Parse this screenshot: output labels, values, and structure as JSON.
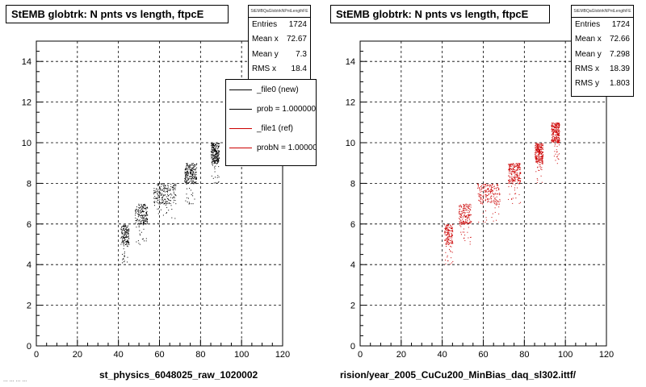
{
  "panels": [
    {
      "title": "StEMB globtrk: N pnts vs length, ftpcE",
      "xlabel": "st_physics_6048025_raw_1020002",
      "stats": {
        "header": "StEMBQaGlobtrkNPntLengthFE",
        "rows": [
          {
            "label": "Entries",
            "value": "1724"
          },
          {
            "label": "Mean x",
            "value": "72.67"
          },
          {
            "label": "Mean y",
            "value": "7.3"
          },
          {
            "label": "RMS x",
            "value": "18.4"
          }
        ]
      },
      "legend": [
        {
          "label": "_file0 (new)",
          "color": "#000000"
        },
        {
          "label": "prob = 1.000000",
          "color": "#000000"
        },
        {
          "label": "_file1 (ref)",
          "color": "#cc0000"
        },
        {
          "label": "probN = 1.000000",
          "color": "#cc0000"
        }
      ],
      "marker_color": "#000000"
    },
    {
      "title": "StEMB globtrk: N pnts vs length, ftpcE",
      "xlabel": "rision/year_2005_CuCu200_MinBias_daq_sl302.ittf/",
      "stats": {
        "header": "StEMBQaGlobtrkNPntLengthFE",
        "rows": [
          {
            "label": "Entries",
            "value": "1724"
          },
          {
            "label": "Mean x",
            "value": "72.66"
          },
          {
            "label": "Mean y",
            "value": "7.298"
          },
          {
            "label": "RMS x",
            "value": "18.39"
          },
          {
            "label": "RMS y",
            "value": "1.803"
          }
        ]
      },
      "marker_color": "#cc0000"
    }
  ],
  "footer": "... ... ... ...",
  "chart_data": [
    {
      "type": "scatter",
      "title": "StEMB globtrk: N pnts vs length, ftpcE",
      "xlim": [
        0,
        120
      ],
      "ylim": [
        0,
        15
      ],
      "x_ticks": [
        0,
        20,
        40,
        60,
        80,
        100,
        120
      ],
      "y_ticks": [
        0,
        2,
        4,
        6,
        8,
        10,
        12,
        14
      ],
      "grid": true,
      "clusters": [
        {
          "y": 5,
          "x_range": [
            41,
            45
          ]
        },
        {
          "y": 6,
          "x_range": [
            48,
            54
          ]
        },
        {
          "y": 7,
          "x_range": [
            57,
            68
          ]
        },
        {
          "y": 8,
          "x_range": [
            72,
            78
          ]
        },
        {
          "y": 9,
          "x_range": [
            85,
            89
          ]
        },
        {
          "y": 10,
          "x_range": [
            93,
            97
          ]
        }
      ]
    },
    {
      "type": "scatter",
      "title": "StEMB globtrk: N pnts vs length, ftpcE",
      "xlim": [
        0,
        120
      ],
      "ylim": [
        0,
        15
      ],
      "x_ticks": [
        0,
        20,
        40,
        60,
        80,
        100,
        120
      ],
      "y_ticks": [
        0,
        2,
        4,
        6,
        8,
        10,
        12,
        14
      ],
      "grid": true,
      "clusters": [
        {
          "y": 5,
          "x_range": [
            41,
            45
          ]
        },
        {
          "y": 6,
          "x_range": [
            48,
            54
          ]
        },
        {
          "y": 7,
          "x_range": [
            57,
            68
          ]
        },
        {
          "y": 8,
          "x_range": [
            72,
            78
          ]
        },
        {
          "y": 9,
          "x_range": [
            85,
            89
          ]
        },
        {
          "y": 10,
          "x_range": [
            93,
            97
          ]
        }
      ]
    }
  ]
}
